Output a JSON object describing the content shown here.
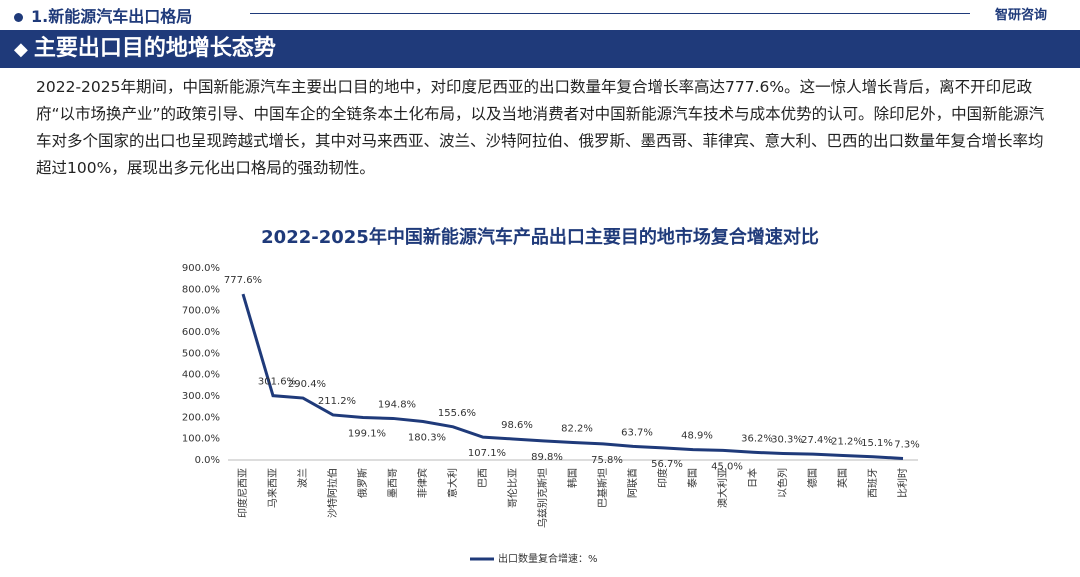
{
  "header": {
    "section": "1.新能源汽车出口格局",
    "logo": "智研咨询",
    "banner": "主要出口目的地增长态势"
  },
  "paragraph": "2022-2025年期间，中国新能源汽车主要出口目的地中，对印度尼西亚的出口数量年复合增长率高达777.6%。这一惊人增长背后，离不开印尼政府“以市场换产业”的政策引导、中国车企的全链条本土化布局，以及当地消费者对中国新能源汽车技术与成本优势的认可。除印尼外，中国新能源汽车对多个国家的出口也呈现跨越式增长，其中对马来西亚、波兰、沙特阿拉伯、俄罗斯、墨西哥、菲律宾、意大利、巴西的出口数量年复合增长率均超过100%，展现出多元化出口格局的强劲韧性。",
  "chart_data": {
    "type": "line",
    "title": "2022-2025年中国新能源汽车产品出口主要目的地市场复合增速对比",
    "categories": [
      "印度尼西亚",
      "马来西亚",
      "波兰",
      "沙特阿拉伯",
      "俄罗斯",
      "墨西哥",
      "菲律宾",
      "意大利",
      "巴西",
      "哥伦比亚",
      "乌兹别克斯坦",
      "韩国",
      "巴基斯坦",
      "阿联酋",
      "印度",
      "泰国",
      "澳大利亚",
      "日本",
      "以色列",
      "德国",
      "英国",
      "西班牙",
      "比利时"
    ],
    "series": [
      {
        "name": "出口数量复合增速：%",
        "color": "#1f3a7a",
        "values": [
          777.6,
          301.6,
          290.4,
          211.2,
          199.1,
          194.8,
          180.3,
          155.6,
          107.1,
          98.6,
          89.8,
          82.2,
          75.8,
          63.7,
          56.7,
          48.9,
          45.0,
          36.2,
          30.3,
          27.4,
          21.2,
          15.1,
          7.3
        ],
        "value_labels": [
          "777.6%",
          "301.6%",
          "290.4%",
          "211.2%",
          "199.1%",
          "194.8%",
          "180.3%",
          "155.6%",
          "107.1%",
          "98.6%",
          "89.8%",
          "82.2%",
          "75.8%",
          "63.7%",
          "56.7%",
          "48.9%",
          "45.0%",
          "36.2%",
          "30.3%",
          "27.4%",
          "21.2%",
          "15.1%",
          "7.3%"
        ]
      }
    ],
    "ylim": [
      0,
      900
    ],
    "yticks": [
      {
        "value": 0,
        "label": "0.0%"
      },
      {
        "value": 100,
        "label": "100.0%"
      },
      {
        "value": 200,
        "label": "200.0%"
      },
      {
        "value": 300,
        "label": "300.0%"
      },
      {
        "value": 400,
        "label": "400.0%"
      },
      {
        "value": 500,
        "label": "500.0%"
      },
      {
        "value": 600,
        "label": "600.0%"
      },
      {
        "value": 700,
        "label": "700.0%"
      },
      {
        "value": 800,
        "label": "800.0%"
      },
      {
        "value": 900,
        "label": "900.0%"
      }
    ],
    "legend": "bottom"
  }
}
